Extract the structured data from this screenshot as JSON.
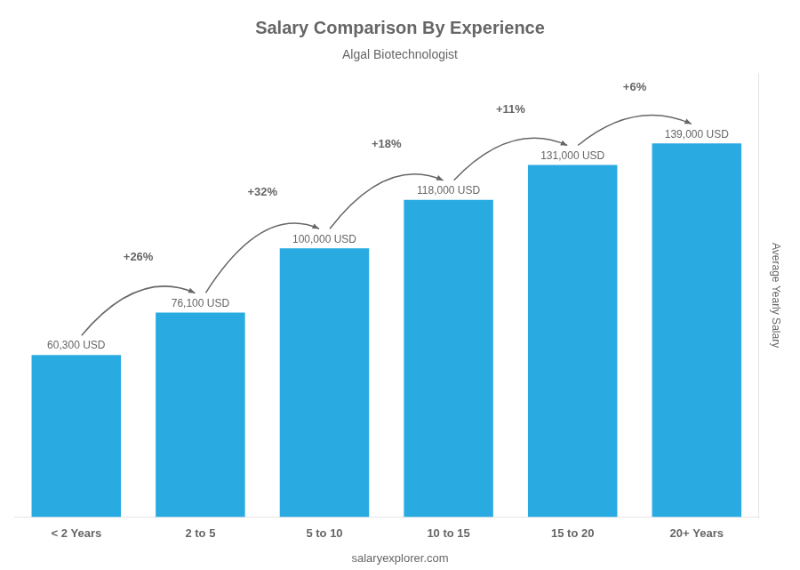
{
  "chart_data": {
    "type": "bar",
    "title": "Salary Comparison By Experience",
    "subtitle": "Algal Biotechnologist",
    "categories": [
      "< 2 Years",
      "2 to 5",
      "5 to 10",
      "10 to 15",
      "15 to 20",
      "20+ Years"
    ],
    "values": [
      60300,
      76100,
      100000,
      118000,
      131000,
      139000
    ],
    "value_labels": [
      "60,300 USD",
      "76,100 USD",
      "100,000 USD",
      "118,000 USD",
      "131,000 USD",
      "139,000 USD"
    ],
    "data_labels": true,
    "annotations": [
      "+26%",
      "+32%",
      "+18%",
      "+11%",
      "+6%"
    ],
    "y_label": "Average Yearly Salary",
    "caption": "salaryexplorer.com",
    "color": "#29ABE2",
    "ylim": [
      0,
      165000
    ],
    "grid": false,
    "tick_labels": "x"
  }
}
